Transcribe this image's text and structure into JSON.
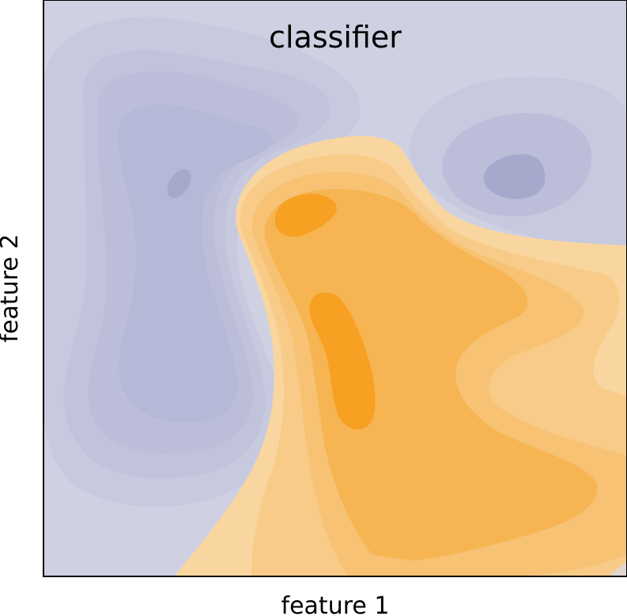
{
  "chart_data": {
    "type": "heatmap",
    "title": "classifier",
    "xlabel": "feature 1",
    "ylabel": "feature 2",
    "grid": false,
    "legend": "none",
    "xticks": [],
    "yticks": [],
    "colors": {
      "class_a": "#a6a8cc",
      "class_a_light": "#cfd1e2",
      "class_b": "#f7a021",
      "class_b_light": "#f9d6a0",
      "frame": "#000000"
    }
  }
}
